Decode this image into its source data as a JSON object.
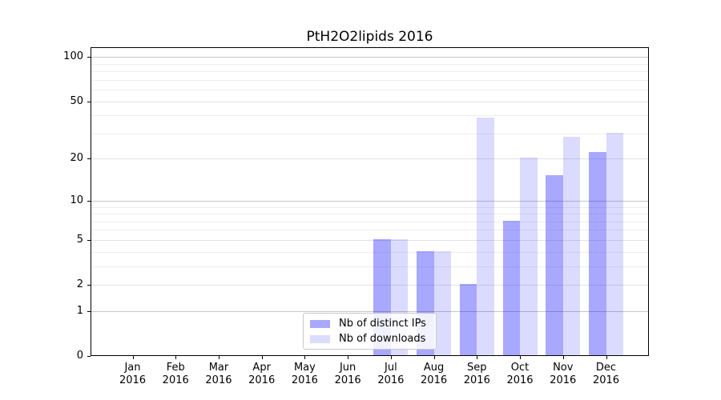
{
  "chart_data": {
    "type": "bar",
    "title": "PtH2O2lipids 2016",
    "categories": [
      "Jan",
      "Feb",
      "Mar",
      "Apr",
      "May",
      "Jun",
      "Jul",
      "Aug",
      "Sep",
      "Oct",
      "Nov",
      "Dec"
    ],
    "year_label": "2016",
    "series": [
      {
        "name": "Nb of distinct IPs",
        "color": "rgba(0,0,255,0.34)",
        "values": [
          0,
          0,
          0,
          0,
          0,
          0,
          5,
          4,
          2,
          7,
          15,
          22
        ]
      },
      {
        "name": "Nb of downloads",
        "color": "rgba(0,0,255,0.14)",
        "values": [
          0,
          0,
          0,
          0,
          0,
          0,
          5,
          4,
          38,
          20,
          28,
          30
        ]
      }
    ],
    "xlabel": "",
    "ylabel": "",
    "y_axis": {
      "scale": "log10(1+x)",
      "major_ticks": [
        0,
        1,
        2,
        5,
        10,
        20,
        50,
        100
      ],
      "decade_gridlines": [
        1,
        10,
        100
      ],
      "minor_gridlines": [
        3,
        4,
        6,
        7,
        8,
        9,
        30,
        40,
        60,
        70,
        80,
        90
      ],
      "ylim": [
        0,
        116
      ]
    },
    "grid": true,
    "legend": {
      "position": "inside-bottom-center",
      "entries": [
        "Nb of distinct IPs",
        "Nb of downloads"
      ]
    },
    "colors": {
      "grid_decade": "#c6c6c6",
      "grid_labeled": "#e3e3e3",
      "grid_minor": "#efefef",
      "spine": "#000000",
      "text": "#000000",
      "legend_border": "#c9c9c9"
    }
  }
}
